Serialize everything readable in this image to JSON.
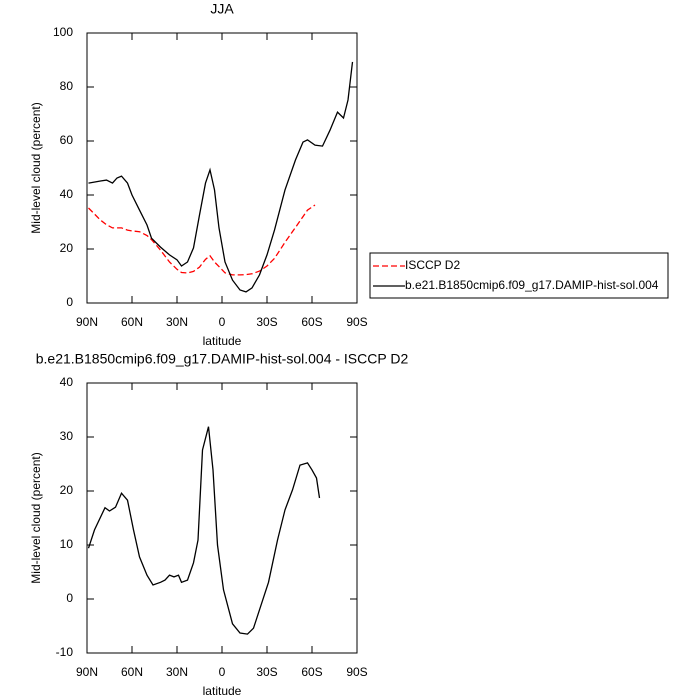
{
  "chart_data": [
    {
      "type": "line",
      "title": "JJA",
      "xlabel": "latitude",
      "ylabel": "Mid-level cloud (percent)",
      "x": [
        89,
        81,
        77,
        73,
        70,
        67,
        63,
        60,
        55,
        50,
        47,
        41,
        35,
        30,
        27,
        23,
        19,
        15,
        11,
        8,
        5,
        2,
        -2,
        -7,
        -12,
        -16,
        -20,
        -25,
        -30,
        -35,
        -42,
        -49,
        -54,
        -57,
        -62,
        -67,
        -72,
        -77,
        -81,
        -84,
        -87
      ],
      "series": [
        {
          "name": "ISCCP D2",
          "color": "#ff0000",
          "dash": true,
          "values": [
            35.2,
            30.7,
            29,
            27.8,
            27.8,
            27.8,
            27,
            26.7,
            26.4,
            25,
            23.5,
            19.6,
            15.2,
            12.5,
            11.3,
            11.1,
            11.7,
            13.3,
            16.2,
            17.5,
            15.2,
            13.5,
            11.2,
            10.4,
            10.4,
            10.5,
            10.8,
            11.8,
            13.7,
            16.5,
            22.5,
            28,
            32,
            34.4,
            36.3,
            null,
            null,
            null,
            null,
            null,
            null
          ]
        },
        {
          "name": "b.e21.B1850cmip6.f09_g17.DAMIP-hist-sol.004",
          "color": "#000000",
          "dash": false,
          "values": [
            44.4,
            45.2,
            45.5,
            44.4,
            46.3,
            47,
            44.4,
            40,
            34.4,
            28.9,
            24,
            20.7,
            17.8,
            16,
            13.7,
            15.2,
            20.4,
            32.6,
            44.4,
            49.3,
            41.9,
            27.8,
            15.2,
            8.5,
            4.8,
            4.1,
            5.6,
            10.4,
            17.8,
            27,
            41.9,
            53,
            59.6,
            60.4,
            58.5,
            58.1,
            64,
            70.7,
            68.5,
            75.2,
            89.3
          ]
        }
      ],
      "xlim": [
        90,
        -90
      ],
      "xticks": [
        {
          "value": 90,
          "label": "90N"
        },
        {
          "value": 60,
          "label": "60N"
        },
        {
          "value": 30,
          "label": "30N"
        },
        {
          "value": 0,
          "label": "0"
        },
        {
          "value": -30,
          "label": "30S"
        },
        {
          "value": -60,
          "label": "60S"
        },
        {
          "value": -90,
          "label": "90S"
        }
      ],
      "ylim": [
        0,
        100
      ],
      "yticks": [
        0,
        20,
        40,
        60,
        80,
        100
      ],
      "legend": "right"
    },
    {
      "type": "line",
      "title": "b.e21.B1850cmip6.f09_g17.DAMIP-hist-sol.004 - ISCCP D2",
      "xlabel": "latitude",
      "ylabel": "Mid-level cloud (percent)",
      "x": [
        89,
        85,
        78,
        75,
        71,
        67,
        63,
        59,
        55,
        50,
        46,
        41,
        38,
        35,
        32,
        29,
        27,
        23,
        19,
        16,
        13,
        9,
        6,
        3,
        -1,
        -7,
        -12,
        -17,
        -21,
        -25,
        -31,
        -37,
        -42,
        -47,
        -52,
        -57,
        -60,
        -63,
        -65
      ],
      "series": [
        {
          "color": "#000000",
          "dash": false,
          "values": [
            9.4,
            12.8,
            16.9,
            16.3,
            17,
            19.6,
            18.3,
            12.8,
            7.8,
            4.4,
            2.6,
            3.1,
            3.5,
            4.4,
            4.1,
            4.4,
            3.1,
            3.5,
            6.7,
            10.9,
            27.6,
            31.9,
            23.9,
            10,
            1.7,
            -4.6,
            -6.3,
            -6.5,
            -5.4,
            -2,
            3.1,
            10.9,
            16.5,
            20.2,
            24.8,
            25.2,
            23.9,
            22.4,
            18.7
          ]
        }
      ],
      "xlim": [
        90,
        -90
      ],
      "xticks": [
        {
          "value": 90,
          "label": "90N"
        },
        {
          "value": 60,
          "label": "60N"
        },
        {
          "value": 30,
          "label": "30N"
        },
        {
          "value": 0,
          "label": "0"
        },
        {
          "value": -30,
          "label": "30S"
        },
        {
          "value": -60,
          "label": "60S"
        },
        {
          "value": -90,
          "label": "90S"
        }
      ],
      "ylim": [
        -10,
        40
      ],
      "yticks": [
        -10,
        0,
        10,
        20,
        30,
        40
      ]
    }
  ]
}
